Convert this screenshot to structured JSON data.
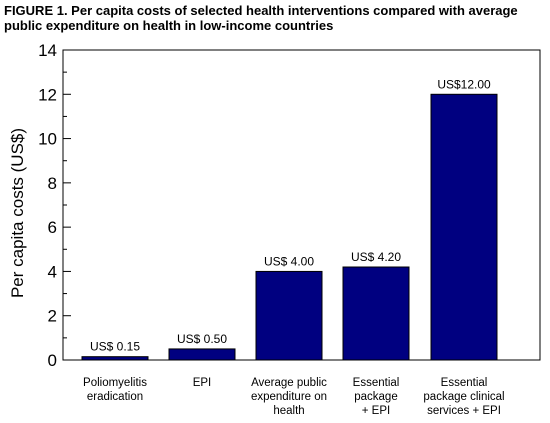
{
  "chart_data": {
    "type": "bar",
    "title": "FIGURE 1. Per capita costs of selected health interventions compared with average public expenditure on health in low-income countries",
    "ylabel": "Per capita costs (US$)",
    "xlabel": "",
    "ylim": [
      0,
      14
    ],
    "yticks": [
      0,
      2,
      4,
      6,
      8,
      10,
      12,
      14
    ],
    "yminor_step": 1,
    "grid": false,
    "legend": "none",
    "bar_color": "#000080",
    "categories": [
      [
        "Poliomyelitis",
        "eradication"
      ],
      [
        "EPI"
      ],
      [
        "Average public",
        "expenditure on",
        "health"
      ],
      [
        "Essential",
        "package",
        "+ EPI"
      ],
      [
        "Essential",
        "package clinical",
        "services + EPI"
      ]
    ],
    "values": [
      0.15,
      0.5,
      4.0,
      4.2,
      12.0
    ],
    "data_labels": [
      "US$ 0.15",
      "US$ 0.50",
      "US$ 4.00",
      "US$ 4.20",
      "US$12.00"
    ]
  }
}
